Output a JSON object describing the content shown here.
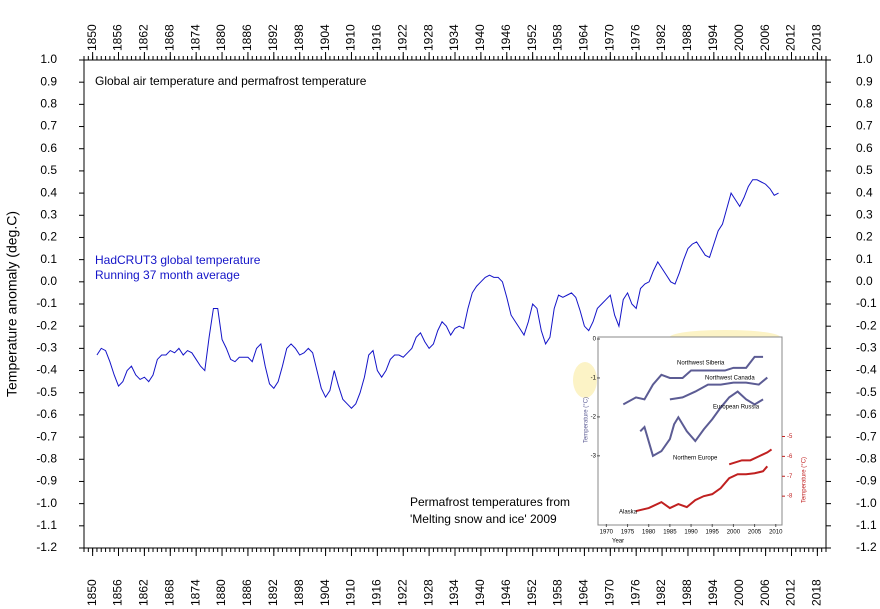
{
  "chart_data": [
    {
      "type": "line",
      "title": "Global air temperature and permafrost temperature",
      "ylabel": "Temperature anomaly (deg.C)",
      "annotations": [
        "Permafrost temperatures from",
        "'Melting snow and ice' 2009"
      ],
      "xlim": [
        1848,
        2020
      ],
      "ylim": [
        -1.2,
        1.0
      ],
      "xticks": [
        1850,
        1856,
        1862,
        1868,
        1874,
        1880,
        1886,
        1892,
        1898,
        1904,
        1910,
        1916,
        1922,
        1928,
        1934,
        1940,
        1946,
        1952,
        1958,
        1964,
        1970,
        1976,
        1982,
        1988,
        1994,
        2000,
        2006,
        2012,
        2018
      ],
      "yticks": [
        {
          "value": 1.0,
          "label": "1.0"
        },
        0.9,
        0.8,
        0.7,
        0.6,
        0.5,
        0.4,
        0.3,
        0.2,
        0.1,
        {
          "value": 0,
          "label": "0.0"
        },
        -0.1,
        -0.2,
        -0.3,
        -0.4,
        -0.5,
        -0.6,
        -0.7,
        -0.8,
        -0.9,
        {
          "value": -1.0,
          "label": "-1.0"
        },
        -1.1,
        -1.2
      ],
      "x": [
        1851,
        1852,
        1853,
        1854,
        1855,
        1856,
        1857,
        1858,
        1859,
        1860,
        1861,
        1862,
        1863,
        1864,
        1865,
        1866,
        1867,
        1868,
        1869,
        1870,
        1871,
        1872,
        1873,
        1874,
        1875,
        1876,
        1877,
        1878,
        1879,
        1880,
        1881,
        1882,
        1883,
        1884,
        1885,
        1886,
        1887,
        1888,
        1889,
        1890,
        1891,
        1892,
        1893,
        1894,
        1895,
        1896,
        1897,
        1898,
        1899,
        1900,
        1901,
        1902,
        1903,
        1904,
        1905,
        1906,
        1907,
        1908,
        1909,
        1910,
        1911,
        1912,
        1913,
        1914,
        1915,
        1916,
        1917,
        1918,
        1919,
        1920,
        1921,
        1922,
        1923,
        1924,
        1925,
        1926,
        1927,
        1928,
        1929,
        1930,
        1931,
        1932,
        1933,
        1934,
        1935,
        1936,
        1937,
        1938,
        1939,
        1940,
        1941,
        1942,
        1943,
        1944,
        1945,
        1946,
        1947,
        1948,
        1949,
        1950,
        1951,
        1952,
        1953,
        1954,
        1955,
        1956,
        1957,
        1958,
        1959,
        1960,
        1961,
        1962,
        1963,
        1964,
        1965,
        1966,
        1967,
        1968,
        1969,
        1970,
        1971,
        1972,
        1973,
        1974,
        1975,
        1976,
        1977,
        1978,
        1979,
        1980,
        1981,
        1982,
        1983,
        1984,
        1985,
        1986,
        1987,
        1988,
        1989,
        1990,
        1991,
        1992,
        1993,
        1994,
        1995,
        1996,
        1997,
        1998,
        1999,
        2000,
        2001,
        2002,
        2003,
        2004,
        2005,
        2006,
        2007,
        2008,
        2009
      ],
      "series": [
        {
          "name": "HadCRUT3 global temperature",
          "note": "Running 37 month average",
          "color": "#1414c8",
          "values": [
            -0.33,
            -0.3,
            -0.31,
            -0.36,
            -0.42,
            -0.47,
            -0.45,
            -0.4,
            -0.38,
            -0.42,
            -0.44,
            -0.43,
            -0.45,
            -0.42,
            -0.35,
            -0.33,
            -0.33,
            -0.31,
            -0.32,
            -0.3,
            -0.33,
            -0.31,
            -0.32,
            -0.35,
            -0.38,
            -0.4,
            -0.25,
            -0.12,
            -0.12,
            -0.26,
            -0.3,
            -0.35,
            -0.36,
            -0.34,
            -0.34,
            -0.34,
            -0.36,
            -0.3,
            -0.28,
            -0.38,
            -0.46,
            -0.48,
            -0.45,
            -0.38,
            -0.3,
            -0.28,
            -0.3,
            -0.33,
            -0.32,
            -0.3,
            -0.32,
            -0.4,
            -0.48,
            -0.52,
            -0.49,
            -0.4,
            -0.47,
            -0.53,
            -0.55,
            -0.57,
            -0.55,
            -0.5,
            -0.43,
            -0.33,
            -0.31,
            -0.4,
            -0.43,
            -0.4,
            -0.35,
            -0.33,
            -0.33,
            -0.34,
            -0.32,
            -0.3,
            -0.25,
            -0.23,
            -0.27,
            -0.3,
            -0.28,
            -0.22,
            -0.18,
            -0.2,
            -0.24,
            -0.21,
            -0.2,
            -0.21,
            -0.12,
            -0.05,
            -0.02,
            0.0,
            0.02,
            0.03,
            0.02,
            0.02,
            0.0,
            -0.07,
            -0.15,
            -0.18,
            -0.21,
            -0.24,
            -0.18,
            -0.1,
            -0.12,
            -0.22,
            -0.28,
            -0.25,
            -0.12,
            -0.06,
            -0.07,
            -0.06,
            -0.05,
            -0.07,
            -0.13,
            -0.2,
            -0.22,
            -0.18,
            -0.12,
            -0.1,
            -0.08,
            -0.06,
            -0.15,
            -0.2,
            -0.08,
            -0.05,
            -0.1,
            -0.12,
            -0.03,
            -0.01,
            0.0,
            0.05,
            0.09,
            0.06,
            0.03,
            0.0,
            -0.01,
            0.04,
            0.1,
            0.15,
            0.17,
            0.18,
            0.15,
            0.12,
            0.11,
            0.17,
            0.23,
            0.26,
            0.33,
            0.4,
            0.37,
            0.34,
            0.38,
            0.43,
            0.46,
            0.46,
            0.45,
            0.44,
            0.42,
            0.39,
            0.4
          ]
        }
      ]
    },
    {
      "type": "line",
      "xlabel": "Year",
      "ylabel": "Temperature (°C)",
      "y2label": "Temperature (°C)",
      "xlim": [
        1968.5,
        2011
      ],
      "ylim": [
        -4.75,
        0
      ],
      "y2lim": [
        -9.4,
        -0.1
      ],
      "xticks": [
        1970,
        1975,
        1980,
        1985,
        1990,
        1995,
        2000,
        2005,
        2010
      ],
      "yticks": [
        0,
        -1,
        -2,
        -3
      ],
      "y2ticks": [
        -5,
        -6,
        -7,
        -8
      ],
      "series": [
        {
          "name": "Northwest Siberia",
          "color": "#5c5c94",
          "x": [
            1974,
            1977,
            1979,
            1981,
            1983,
            1985,
            1988,
            1990,
            1995,
            1998,
            2000,
            2003,
            2005,
            2007
          ],
          "values": [
            -1.68,
            -1.5,
            -1.55,
            -1.17,
            -0.92,
            -1.0,
            -1.0,
            -0.81,
            -0.81,
            -0.81,
            -0.74,
            -0.74,
            -0.46,
            -0.46
          ]
        },
        {
          "name": "Northwest Canada",
          "color": "#5c5c94",
          "x": [
            1985,
            1988,
            1991,
            1994,
            1997,
            2000,
            2003,
            2006,
            2008
          ],
          "values": [
            -1.55,
            -1.5,
            -1.35,
            -1.17,
            -1.17,
            -1.12,
            -1.12,
            -1.17,
            -0.99
          ]
        },
        {
          "name": "European Russia",
          "color": "#5c5c94",
          "x": [
            1978,
            1979,
            1981,
            1983,
            1985,
            1986,
            1987,
            1989,
            1991,
            1993,
            1995,
            1997,
            1999,
            2001,
            2003,
            2005,
            2007
          ],
          "values": [
            -2.37,
            -2.26,
            -3.0,
            -2.88,
            -2.57,
            -2.19,
            -2.01,
            -2.37,
            -2.62,
            -2.32,
            -2.06,
            -1.76,
            -1.5,
            -1.35,
            -1.55,
            -1.68,
            -1.55
          ]
        },
        {
          "name": "Northern Europe",
          "color": "#c02020",
          "axis": "y2",
          "x": [
            1999,
            2002,
            2004,
            2006,
            2008,
            2009
          ],
          "values": [
            -6.4,
            -6.2,
            -6.2,
            -6.0,
            -5.8,
            -5.65
          ]
        },
        {
          "name": "Alaska",
          "color": "#c02020",
          "axis": "y2",
          "x": [
            1977,
            1980,
            1983,
            1985,
            1987,
            1989,
            1991,
            1993,
            1995,
            1997,
            1999,
            2001,
            2003,
            2005,
            2007,
            2008
          ],
          "values": [
            -8.75,
            -8.6,
            -8.3,
            -8.6,
            -8.4,
            -8.55,
            -8.2,
            -8.0,
            -7.9,
            -7.6,
            -7.1,
            -6.9,
            -6.9,
            -6.85,
            -6.75,
            -6.5
          ]
        }
      ]
    }
  ]
}
